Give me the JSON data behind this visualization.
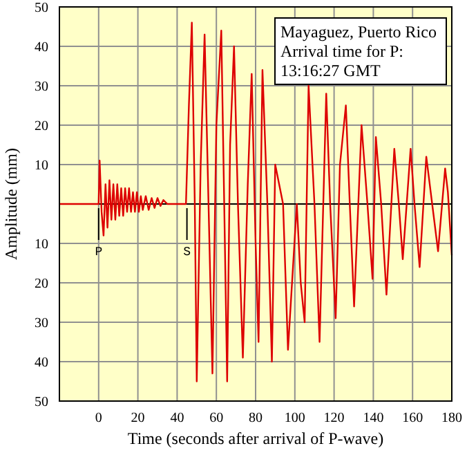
{
  "chart_data": {
    "type": "line",
    "xlabel": "Time (seconds after arrival of P-wave)",
    "ylabel": "Amplitude (mm)",
    "xlim": [
      -20,
      180
    ],
    "xticks": [
      0,
      20,
      40,
      60,
      80,
      100,
      120,
      140,
      160,
      180
    ],
    "ylim": [
      -50,
      50
    ],
    "yticks": [
      {
        "value": -50,
        "label": "50"
      },
      {
        "value": -40,
        "label": "40"
      },
      {
        "value": -30,
        "label": "30"
      },
      {
        "value": -20,
        "label": "20"
      },
      {
        "value": -10,
        "label": "10"
      },
      {
        "value": 0,
        "label": null
      },
      10,
      20,
      30,
      40,
      50
    ],
    "grid": true,
    "line_style": "solid",
    "ref_lines": [
      {
        "axis": "y",
        "value": 0,
        "color": "#000000"
      },
      {
        "axis": "x",
        "value": 0,
        "label": "P",
        "color": "#000000"
      },
      {
        "axis": "x",
        "value": 45,
        "label": "S",
        "color": "#000000"
      }
    ],
    "annotations": [
      "Mayaguez, Puerto Rico",
      "Arrival time for P:",
      "13:16:27 GMT"
    ],
    "series": [
      {
        "color": "#dd0000",
        "x": [
          -20,
          0,
          0.5,
          1.5,
          2.5,
          3.5,
          4.5,
          5.5,
          6.5,
          7.5,
          8.5,
          9.5,
          10.5,
          11.5,
          12.5,
          13.5,
          14.5,
          15.5,
          16.5,
          17.5,
          18.5,
          19.5,
          20.5,
          21.5,
          22.5,
          24,
          25.5,
          27,
          28.5,
          30,
          31.5,
          33,
          35,
          44.5,
          46,
          47.5,
          49,
          50,
          52,
          54,
          56,
          58,
          60,
          62.5,
          64,
          65.5,
          67,
          69,
          71,
          73.5,
          76,
          78,
          80,
          81.5,
          83.5,
          86,
          88.3,
          90,
          94,
          96.5,
          101,
          103,
          105,
          107,
          110,
          112.6,
          116,
          118,
          120.8,
          123,
          126,
          128,
          130.2,
          134,
          137,
          139.6,
          141.3,
          144,
          146.7,
          150.7,
          153,
          155,
          159,
          161,
          163.6,
          167,
          170,
          173,
          176.6,
          178,
          180
        ],
        "values": [
          0,
          0,
          11,
          -2,
          -8,
          5,
          -6,
          6,
          -4,
          5,
          -4,
          5,
          -3,
          4,
          -3,
          4,
          -2,
          4,
          -2,
          3,
          -2,
          3,
          -2,
          2,
          -1.5,
          2,
          -1.5,
          1.5,
          -1,
          1.5,
          -0.5,
          1,
          0,
          0,
          25,
          46,
          0,
          -45,
          10,
          43,
          0,
          -43,
          20,
          44,
          0,
          -45,
          15,
          40,
          0,
          -39,
          5,
          33,
          -10,
          -35,
          34,
          0,
          -40,
          10,
          0,
          -37,
          0,
          -20,
          -30,
          30,
          0,
          -35,
          28,
          0,
          -29,
          10,
          25,
          0,
          -26,
          20,
          0,
          -19,
          17,
          0,
          -23,
          14,
          0,
          -14,
          14,
          0,
          -16,
          12,
          0,
          -12,
          9,
          3,
          -13
        ]
      }
    ]
  }
}
